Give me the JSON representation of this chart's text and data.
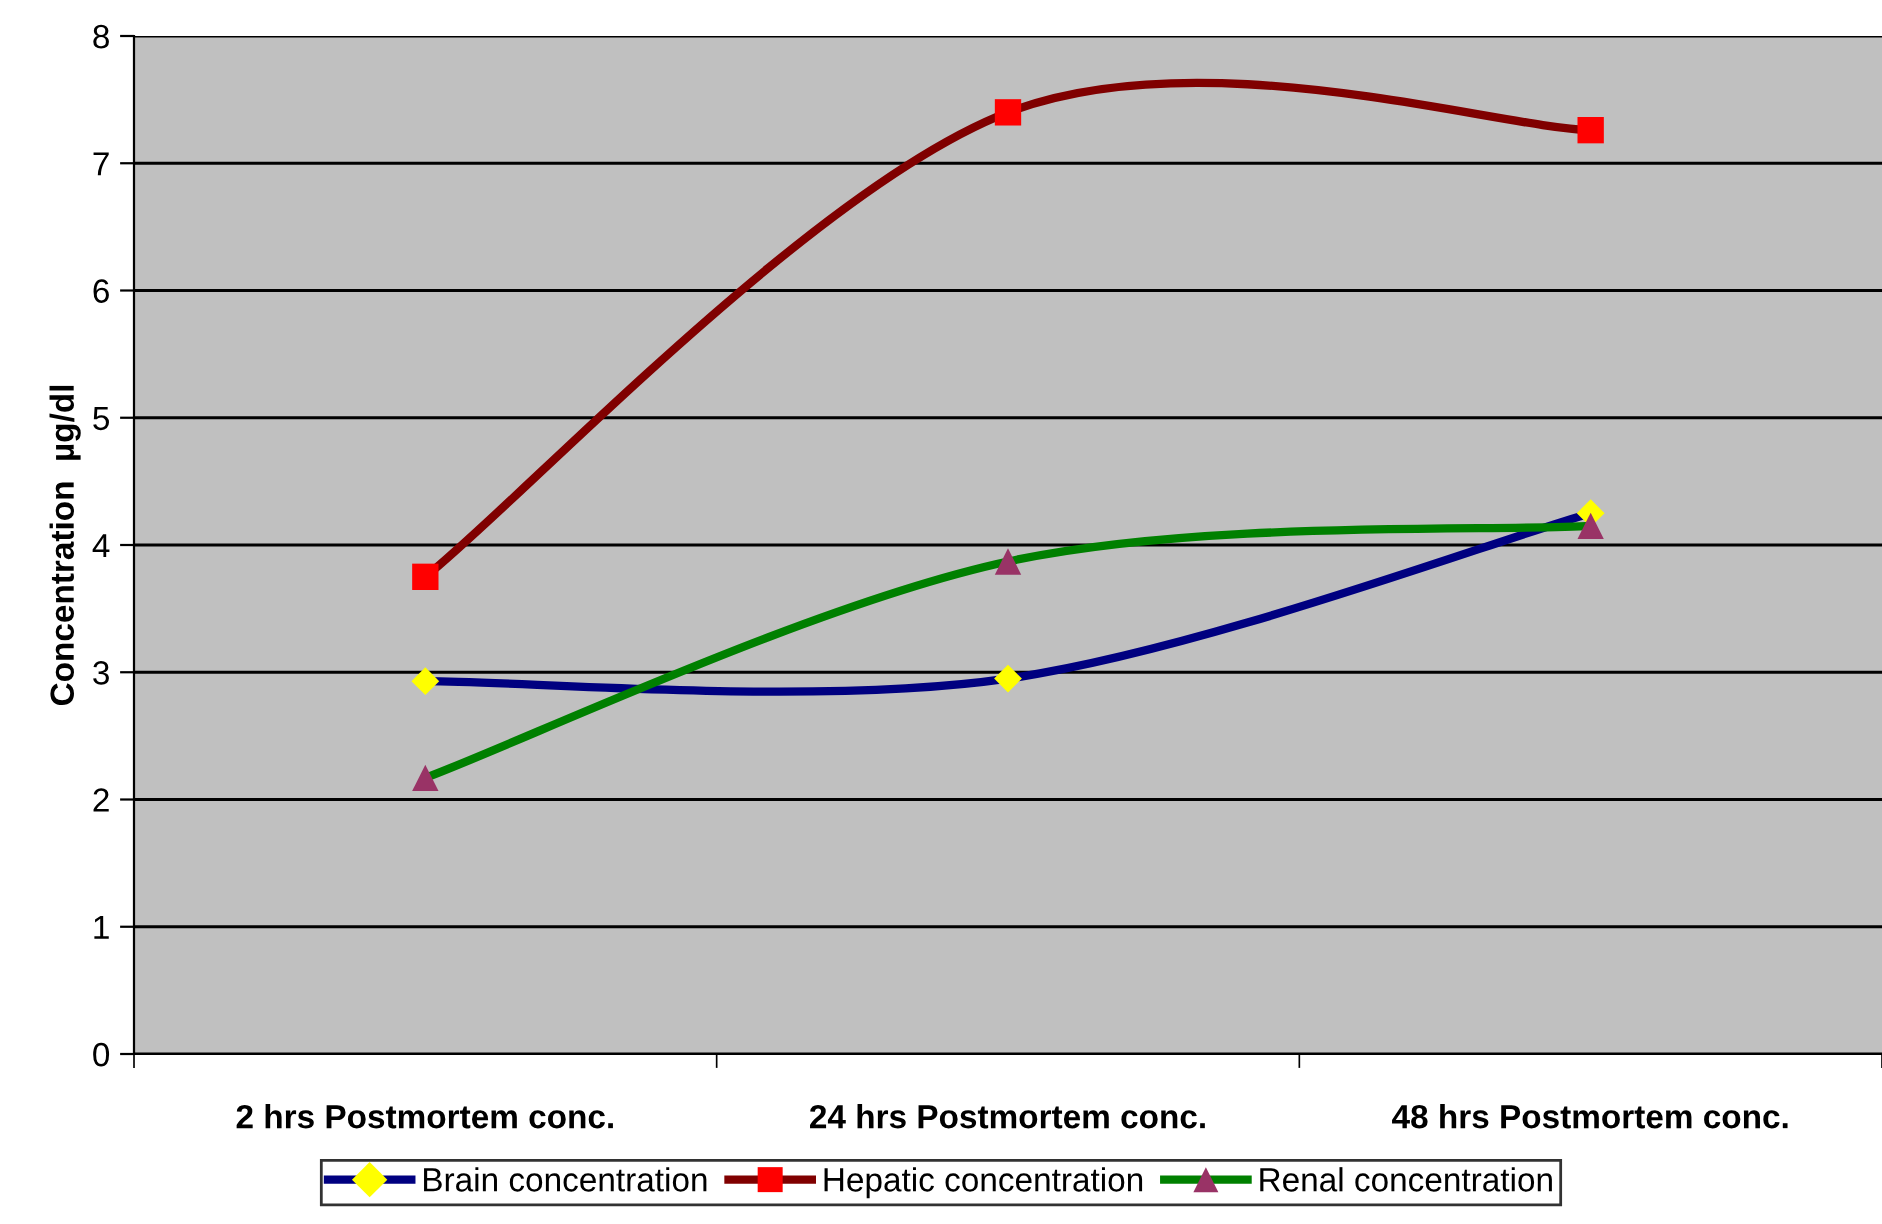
{
  "chart_data": {
    "type": "line",
    "ylabel": "Concentration  µg/dl",
    "categories": [
      "2 hrs Postmortem conc.",
      "24 hrs Postmortem conc.",
      "48 hrs Postmortem conc."
    ],
    "series": [
      {
        "name": "Brain concentration",
        "color": "#000080",
        "colors": [
          "#ffff00",
          "#ffff00",
          "#ffff00"
        ],
        "marker": "diamond",
        "values": [
          2.93,
          2.95,
          4.25
        ]
      },
      {
        "name": "Hepatic concentration",
        "color": "#800000",
        "colors": [
          "#ff0000",
          "#ff0000",
          "#ff0000"
        ],
        "marker": "square",
        "values": [
          3.75,
          7.4,
          7.26
        ]
      },
      {
        "name": "Renal concentration",
        "color": "#008000",
        "colors": [
          "#993366",
          "#993366",
          "#993366"
        ],
        "marker": "triangle",
        "values": [
          2.17,
          3.87,
          4.15
        ]
      }
    ],
    "ylim": [
      0,
      8
    ],
    "yticks": [
      0,
      1,
      2,
      3,
      4,
      5,
      6,
      7,
      8
    ],
    "grid": "y",
    "legend": "bottom",
    "line_style": "solid"
  }
}
